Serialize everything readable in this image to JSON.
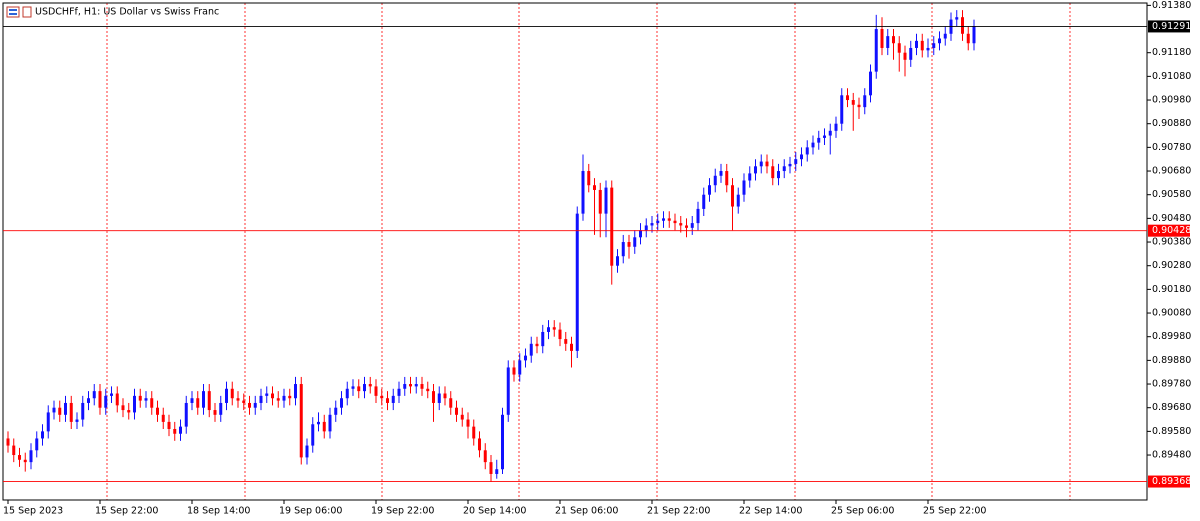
{
  "chart_data": {
    "type": "candlestick",
    "title": "USDCHFf, H1:  US Dollar vs Swiss Franc",
    "up_color": "#1010ff",
    "down_color": "#ff0000",
    "ylim": [
      0.8929,
      0.9139
    ],
    "yticks": [
      {
        "value": 0.9138,
        "label": "0.91380"
      },
      {
        "value": 0.9118,
        "label": "0.91180"
      },
      {
        "value": 0.9108,
        "label": "0.91080"
      },
      {
        "value": 0.9098,
        "label": "0.90980"
      },
      {
        "value": 0.9088,
        "label": "0.90880"
      },
      {
        "value": 0.9078,
        "label": "0.90780"
      },
      {
        "value": 0.9068,
        "label": "0.90680"
      },
      {
        "value": 0.9058,
        "label": "0.90580"
      },
      {
        "value": 0.9048,
        "label": "0.90480"
      },
      {
        "value": 0.9038,
        "label": "0.90380"
      },
      {
        "value": 0.9028,
        "label": "0.90280"
      },
      {
        "value": 0.9018,
        "label": "0.90180"
      },
      {
        "value": 0.9008,
        "label": "0.90080"
      },
      {
        "value": 0.8998,
        "label": "0.89980"
      },
      {
        "value": 0.8988,
        "label": "0.89880"
      },
      {
        "value": 0.8978,
        "label": "0.89780"
      },
      {
        "value": 0.8968,
        "label": "0.89680"
      },
      {
        "value": 0.8958,
        "label": "0.89580"
      },
      {
        "value": 0.8948,
        "label": "0.89480"
      }
    ],
    "levels": [
      {
        "value": 0.91291,
        "color": "#000000"
      },
      {
        "value": 0.90428,
        "color": "#ff0000"
      },
      {
        "value": 0.89368,
        "color": "#ff0000"
      }
    ],
    "categories": [
      "15 Sep 2023",
      null,
      null,
      null,
      null,
      null,
      null,
      null,
      null,
      null,
      null,
      null,
      null,
      null,
      null,
      null,
      "15 Sep 22:00",
      null,
      null,
      null,
      null,
      null,
      null,
      null,
      null,
      null,
      null,
      null,
      null,
      null,
      null,
      null,
      "18 Sep 14:00",
      null,
      null,
      null,
      null,
      null,
      null,
      null,
      null,
      null,
      null,
      null,
      null,
      null,
      null,
      null,
      "19 Sep 06:00",
      null,
      null,
      null,
      null,
      null,
      null,
      null,
      null,
      null,
      null,
      null,
      null,
      null,
      null,
      null,
      "19 Sep 22:00",
      null,
      null,
      null,
      null,
      null,
      null,
      null,
      null,
      null,
      null,
      null,
      null,
      null,
      null,
      null,
      "20 Sep 14:00",
      null,
      null,
      null,
      null,
      null,
      null,
      null,
      null,
      null,
      null,
      null,
      null,
      null,
      null,
      null,
      "21 Sep 06:00",
      null,
      null,
      null,
      null,
      null,
      null,
      null,
      null,
      null,
      null,
      null,
      null,
      null,
      null,
      null,
      "21 Sep 22:00",
      null,
      null,
      null,
      null,
      null,
      null,
      null,
      null,
      null,
      null,
      null,
      null,
      null,
      null,
      null,
      "22 Sep 14:00",
      null,
      null,
      null,
      null,
      null,
      null,
      null,
      null,
      null,
      null,
      null,
      null,
      null,
      null,
      null,
      "25 Sep 06:00",
      null,
      null,
      null,
      null,
      null,
      null,
      null,
      null,
      null,
      null,
      null,
      null,
      null,
      null,
      null,
      "25 Sep 22:00",
      null,
      null,
      null,
      null,
      null,
      null,
      null,
      null
    ],
    "ohlc": [
      [
        0.8955,
        0.8958,
        0.8949,
        0.8952
      ],
      [
        0.8952,
        0.8955,
        0.8945,
        0.8948
      ],
      [
        0.8948,
        0.8951,
        0.8943,
        0.8946
      ],
      [
        0.8946,
        0.8949,
        0.8941,
        0.8945
      ],
      [
        0.8945,
        0.8953,
        0.8942,
        0.895
      ],
      [
        0.895,
        0.8958,
        0.8947,
        0.8955
      ],
      [
        0.8955,
        0.8961,
        0.8952,
        0.8958
      ],
      [
        0.8958,
        0.8969,
        0.8955,
        0.8966
      ],
      [
        0.8966,
        0.8971,
        0.8963,
        0.8968
      ],
      [
        0.8968,
        0.8971,
        0.8962,
        0.8965
      ],
      [
        0.8965,
        0.8973,
        0.8962,
        0.897
      ],
      [
        0.897,
        0.8973,
        0.8959,
        0.8962
      ],
      [
        0.8962,
        0.8966,
        0.8959,
        0.8963
      ],
      [
        0.8963,
        0.8973,
        0.896,
        0.897
      ],
      [
        0.897,
        0.8975,
        0.8967,
        0.8972
      ],
      [
        0.8972,
        0.8978,
        0.8969,
        0.8975
      ],
      [
        0.8975,
        0.8978,
        0.8965,
        0.8968
      ],
      [
        0.8968,
        0.8976,
        0.8965,
        0.8973
      ],
      [
        0.8973,
        0.8977,
        0.897,
        0.8974
      ],
      [
        0.8974,
        0.8977,
        0.8966,
        0.8969
      ],
      [
        0.8969,
        0.8972,
        0.8964,
        0.8967
      ],
      [
        0.8967,
        0.897,
        0.8963,
        0.8966
      ],
      [
        0.8966,
        0.8976,
        0.8963,
        0.8973
      ],
      [
        0.8973,
        0.8976,
        0.8968,
        0.8971
      ],
      [
        0.8971,
        0.8975,
        0.8968,
        0.8972
      ],
      [
        0.8972,
        0.8975,
        0.8965,
        0.8968
      ],
      [
        0.8968,
        0.8971,
        0.8962,
        0.8965
      ],
      [
        0.8965,
        0.8968,
        0.8959,
        0.8962
      ],
      [
        0.8962,
        0.8965,
        0.8956,
        0.8959
      ],
      [
        0.8959,
        0.8962,
        0.8954,
        0.8957
      ],
      [
        0.8957,
        0.8963,
        0.8954,
        0.896
      ],
      [
        0.896,
        0.8973,
        0.8957,
        0.897
      ],
      [
        0.897,
        0.8975,
        0.8967,
        0.8972
      ],
      [
        0.8972,
        0.8975,
        0.8965,
        0.8968
      ],
      [
        0.8968,
        0.8978,
        0.8965,
        0.8975
      ],
      [
        0.8975,
        0.8978,
        0.8964,
        0.8967
      ],
      [
        0.8967,
        0.897,
        0.8962,
        0.8965
      ],
      [
        0.8965,
        0.8973,
        0.8962,
        0.897
      ],
      [
        0.897,
        0.8979,
        0.8967,
        0.8976
      ],
      [
        0.8976,
        0.8979,
        0.8969,
        0.8972
      ],
      [
        0.8972,
        0.8975,
        0.8968,
        0.8971
      ],
      [
        0.8971,
        0.8974,
        0.8967,
        0.897
      ],
      [
        0.897,
        0.8973,
        0.8965,
        0.8968
      ],
      [
        0.8968,
        0.8973,
        0.8965,
        0.897
      ],
      [
        0.897,
        0.8976,
        0.8967,
        0.8973
      ],
      [
        0.8973,
        0.8977,
        0.897,
        0.8974
      ],
      [
        0.8974,
        0.8977,
        0.8969,
        0.8972
      ],
      [
        0.8972,
        0.8975,
        0.8968,
        0.8971
      ],
      [
        0.8971,
        0.8976,
        0.8968,
        0.8973
      ],
      [
        0.8973,
        0.8976,
        0.8969,
        0.8972
      ],
      [
        0.8972,
        0.8981,
        0.8969,
        0.8978
      ],
      [
        0.8978,
        0.8981,
        0.8944,
        0.8947
      ],
      [
        0.8947,
        0.8955,
        0.8944,
        0.8952
      ],
      [
        0.8952,
        0.8964,
        0.8949,
        0.8961
      ],
      [
        0.8961,
        0.8966,
        0.8958,
        0.8962
      ],
      [
        0.8962,
        0.8965,
        0.8955,
        0.8958
      ],
      [
        0.8958,
        0.8968,
        0.8955,
        0.8965
      ],
      [
        0.8965,
        0.8971,
        0.8962,
        0.8968
      ],
      [
        0.8968,
        0.8975,
        0.8965,
        0.8972
      ],
      [
        0.8972,
        0.8979,
        0.8969,
        0.8976
      ],
      [
        0.8976,
        0.898,
        0.8973,
        0.8977
      ],
      [
        0.8977,
        0.898,
        0.8972,
        0.8975
      ],
      [
        0.8975,
        0.8981,
        0.8972,
        0.8978
      ],
      [
        0.8978,
        0.8981,
        0.8974,
        0.8977
      ],
      [
        0.8977,
        0.898,
        0.897,
        0.8973
      ],
      [
        0.8973,
        0.8976,
        0.8969,
        0.8972
      ],
      [
        0.8972,
        0.8975,
        0.8967,
        0.897
      ],
      [
        0.897,
        0.8976,
        0.8967,
        0.8973
      ],
      [
        0.8973,
        0.8979,
        0.897,
        0.8976
      ],
      [
        0.8976,
        0.8981,
        0.8973,
        0.8978
      ],
      [
        0.8978,
        0.8981,
        0.8974,
        0.8977
      ],
      [
        0.8977,
        0.8981,
        0.8974,
        0.8978
      ],
      [
        0.8978,
        0.8981,
        0.8973,
        0.8976
      ],
      [
        0.8976,
        0.8979,
        0.8972,
        0.8975
      ],
      [
        0.8975,
        0.8978,
        0.8962,
        0.897
      ],
      [
        0.897,
        0.8977,
        0.8967,
        0.8974
      ],
      [
        0.8974,
        0.8977,
        0.8969,
        0.8972
      ],
      [
        0.8972,
        0.8975,
        0.8965,
        0.8968
      ],
      [
        0.8968,
        0.8971,
        0.8962,
        0.8965
      ],
      [
        0.8965,
        0.8968,
        0.896,
        0.8963
      ],
      [
        0.8963,
        0.8966,
        0.8955,
        0.896
      ],
      [
        0.896,
        0.8963,
        0.8952,
        0.8955
      ],
      [
        0.8955,
        0.8958,
        0.8947,
        0.895
      ],
      [
        0.895,
        0.8953,
        0.8942,
        0.8945
      ],
      [
        0.8945,
        0.8948,
        0.89368,
        0.894
      ],
      [
        0.894,
        0.8946,
        0.8938,
        0.8942
      ],
      [
        0.8942,
        0.8968,
        0.894,
        0.8965
      ],
      [
        0.8965,
        0.8988,
        0.8962,
        0.8985
      ],
      [
        0.8985,
        0.8988,
        0.8979,
        0.8982
      ],
      [
        0.8982,
        0.8991,
        0.8979,
        0.8988
      ],
      [
        0.8988,
        0.8993,
        0.8985,
        0.899
      ],
      [
        0.899,
        0.8998,
        0.8987,
        0.8995
      ],
      [
        0.8995,
        0.8998,
        0.8991,
        0.8994
      ],
      [
        0.8994,
        0.9003,
        0.8991,
        0.9
      ],
      [
        0.9,
        0.9005,
        0.8997,
        0.9002
      ],
      [
        0.9002,
        0.9005,
        0.8998,
        0.9001
      ],
      [
        0.9001,
        0.9004,
        0.8994,
        0.8997
      ],
      [
        0.8997,
        0.9,
        0.8992,
        0.8995
      ],
      [
        0.8995,
        0.8998,
        0.8985,
        0.8992
      ],
      [
        0.8992,
        0.9053,
        0.8989,
        0.905
      ],
      [
        0.905,
        0.9075,
        0.9047,
        0.9068
      ],
      [
        0.9068,
        0.9071,
        0.9059,
        0.9062
      ],
      [
        0.9062,
        0.9065,
        0.9041,
        0.906
      ],
      [
        0.906,
        0.9063,
        0.904,
        0.905
      ],
      [
        0.905,
        0.9064,
        0.904,
        0.9061
      ],
      [
        0.9061,
        0.9064,
        0.902,
        0.9028
      ],
      [
        0.9028,
        0.9035,
        0.9025,
        0.9032
      ],
      [
        0.9032,
        0.9041,
        0.9029,
        0.9038
      ],
      [
        0.9038,
        0.9041,
        0.9031,
        0.9036
      ],
      [
        0.9036,
        0.9043,
        0.9033,
        0.904
      ],
      [
        0.904,
        0.9046,
        0.9037,
        0.9043
      ],
      [
        0.9043,
        0.9048,
        0.904,
        0.9045
      ],
      [
        0.9045,
        0.9049,
        0.9042,
        0.9046
      ],
      [
        0.9046,
        0.905,
        0.9043,
        0.9047
      ],
      [
        0.9047,
        0.9051,
        0.9044,
        0.9048
      ],
      [
        0.9048,
        0.9051,
        0.9044,
        0.9047
      ],
      [
        0.9047,
        0.905,
        0.9043,
        0.9046
      ],
      [
        0.9046,
        0.9049,
        0.9042,
        0.9045
      ],
      [
        0.9045,
        0.9048,
        0.904,
        0.9044
      ],
      [
        0.9044,
        0.9049,
        0.9041,
        0.9046
      ],
      [
        0.9046,
        0.9055,
        0.9043,
        0.9052
      ],
      [
        0.9052,
        0.9061,
        0.9049,
        0.9058
      ],
      [
        0.9058,
        0.9065,
        0.9055,
        0.9062
      ],
      [
        0.9062,
        0.9069,
        0.9059,
        0.9066
      ],
      [
        0.9066,
        0.9071,
        0.9063,
        0.9068
      ],
      [
        0.9068,
        0.9071,
        0.9059,
        0.9062
      ],
      [
        0.9062,
        0.9065,
        0.9043,
        0.9053
      ],
      [
        0.9053,
        0.9061,
        0.905,
        0.9058
      ],
      [
        0.9058,
        0.9067,
        0.9055,
        0.9064
      ],
      [
        0.9064,
        0.907,
        0.9061,
        0.9067
      ],
      [
        0.9067,
        0.9073,
        0.9064,
        0.907
      ],
      [
        0.907,
        0.9075,
        0.9067,
        0.9072
      ],
      [
        0.9072,
        0.9075,
        0.9067,
        0.907
      ],
      [
        0.907,
        0.9073,
        0.9062,
        0.9065
      ],
      [
        0.9065,
        0.9071,
        0.9062,
        0.9068
      ],
      [
        0.9068,
        0.9073,
        0.9065,
        0.907
      ],
      [
        0.907,
        0.9074,
        0.9067,
        0.9071
      ],
      [
        0.9071,
        0.9076,
        0.9068,
        0.9073
      ],
      [
        0.9073,
        0.9078,
        0.907,
        0.9075
      ],
      [
        0.9075,
        0.9081,
        0.9072,
        0.9078
      ],
      [
        0.9078,
        0.9083,
        0.9075,
        0.908
      ],
      [
        0.908,
        0.9085,
        0.9077,
        0.9082
      ],
      [
        0.9082,
        0.9086,
        0.9079,
        0.9083
      ],
      [
        0.9083,
        0.9088,
        0.9075,
        0.9085
      ],
      [
        0.9085,
        0.9091,
        0.9082,
        0.9088
      ],
      [
        0.9088,
        0.9103,
        0.9085,
        0.91
      ],
      [
        0.91,
        0.9103,
        0.9095,
        0.9098
      ],
      [
        0.9098,
        0.9101,
        0.9085,
        0.9096
      ],
      [
        0.9096,
        0.9099,
        0.909,
        0.9095
      ],
      [
        0.9095,
        0.9103,
        0.9092,
        0.91
      ],
      [
        0.91,
        0.9113,
        0.9097,
        0.911
      ],
      [
        0.911,
        0.9134,
        0.9107,
        0.9128
      ],
      [
        0.9128,
        0.9133,
        0.9117,
        0.912
      ],
      [
        0.912,
        0.9128,
        0.9117,
        0.9125
      ],
      [
        0.9125,
        0.9128,
        0.9115,
        0.9122
      ],
      [
        0.9122,
        0.9125,
        0.911,
        0.9118
      ],
      [
        0.9118,
        0.9121,
        0.9108,
        0.9115
      ],
      [
        0.9115,
        0.9123,
        0.9112,
        0.912
      ],
      [
        0.912,
        0.9126,
        0.9117,
        0.9123
      ],
      [
        0.9123,
        0.9126,
        0.9116,
        0.9119
      ],
      [
        0.9119,
        0.9124,
        0.9116,
        0.912
      ],
      [
        0.912,
        0.9125,
        0.9117,
        0.9122
      ],
      [
        0.9122,
        0.9127,
        0.9119,
        0.9124
      ],
      [
        0.9124,
        0.9129,
        0.9121,
        0.9126
      ],
      [
        0.9126,
        0.9135,
        0.9123,
        0.9132
      ],
      [
        0.9132,
        0.9136,
        0.9129,
        0.9133
      ],
      [
        0.9133,
        0.9136,
        0.9123,
        0.9126
      ],
      [
        0.9126,
        0.9129,
        0.9119,
        0.9122
      ],
      [
        0.9122,
        0.9132,
        0.9119,
        0.91291
      ]
    ]
  }
}
